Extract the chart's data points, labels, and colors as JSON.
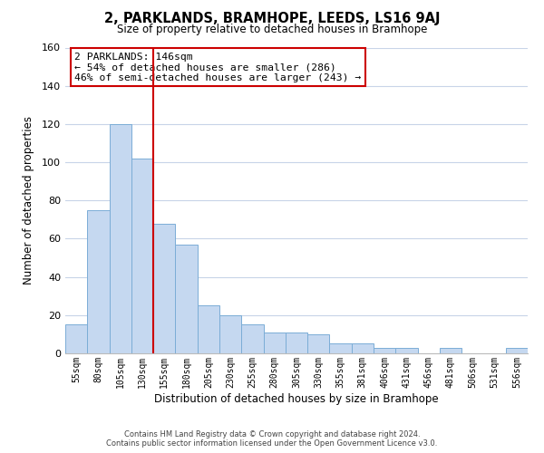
{
  "title": "2, PARKLANDS, BRAMHOPE, LEEDS, LS16 9AJ",
  "subtitle": "Size of property relative to detached houses in Bramhope",
  "xlabel": "Distribution of detached houses by size in Bramhope",
  "ylabel": "Number of detached properties",
  "bar_labels": [
    "55sqm",
    "80sqm",
    "105sqm",
    "130sqm",
    "155sqm",
    "180sqm",
    "205sqm",
    "230sqm",
    "255sqm",
    "280sqm",
    "305sqm",
    "330sqm",
    "355sqm",
    "381sqm",
    "406sqm",
    "431sqm",
    "456sqm",
    "481sqm",
    "506sqm",
    "531sqm",
    "556sqm"
  ],
  "bar_heights": [
    15,
    75,
    120,
    102,
    68,
    57,
    25,
    20,
    15,
    11,
    11,
    10,
    5,
    5,
    3,
    3,
    0,
    3,
    0,
    0,
    3
  ],
  "bar_color": "#c5d8f0",
  "bar_edge_color": "#7badd6",
  "highlight_line_color": "#cc0000",
  "ylim": [
    0,
    160
  ],
  "yticks": [
    0,
    20,
    40,
    60,
    80,
    100,
    120,
    140,
    160
  ],
  "annotation_title": "2 PARKLANDS: 146sqm",
  "annotation_line1": "← 54% of detached houses are smaller (286)",
  "annotation_line2": "46% of semi-detached houses are larger (243) →",
  "footer_line1": "Contains HM Land Registry data © Crown copyright and database right 2024.",
  "footer_line2": "Contains public sector information licensed under the Open Government Licence v3.0.",
  "background_color": "#ffffff",
  "grid_color": "#c8d4e8"
}
